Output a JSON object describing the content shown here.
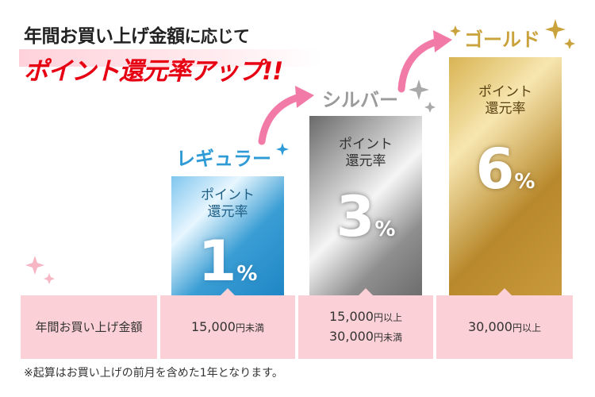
{
  "headline": {
    "line1": "年間お買い上げ金額",
    "line1_tail": "に応じて",
    "line2": "ポイント還元率アップ!!"
  },
  "tiers": [
    {
      "name": "レギュラー",
      "label_line1": "ポイント",
      "label_line2": "還元率",
      "rate": "1",
      "unit": "%",
      "threshold_line1": "15,000",
      "threshold_unit1": "円未満",
      "threshold_line2": "",
      "threshold_unit2": "",
      "color": "#2e9bd6"
    },
    {
      "name": "シルバー",
      "label_line1": "ポイント",
      "label_line2": "還元率",
      "rate": "3",
      "unit": "%",
      "threshold_line1": "15,000",
      "threshold_unit1": "円以上",
      "threshold_line2": "30,000",
      "threshold_unit2": "円未満",
      "color": "#9b9b9b"
    },
    {
      "name": "ゴールド",
      "label_line1": "ポイント",
      "label_line2": "還元率",
      "rate": "6",
      "unit": "%",
      "threshold_line1": "30,000",
      "threshold_unit1": "円以上",
      "threshold_line2": "",
      "threshold_unit2": "",
      "color": "#c9a23b"
    }
  ],
  "table": {
    "row_header": "年間お買い上げ金額"
  },
  "footnote": "※起算はお買い上げの前月を含めた1年となります。",
  "colors": {
    "accent_red": "#e60012",
    "arrow_pink": "#f27aa6",
    "table_bg": "#fbd0d6"
  }
}
